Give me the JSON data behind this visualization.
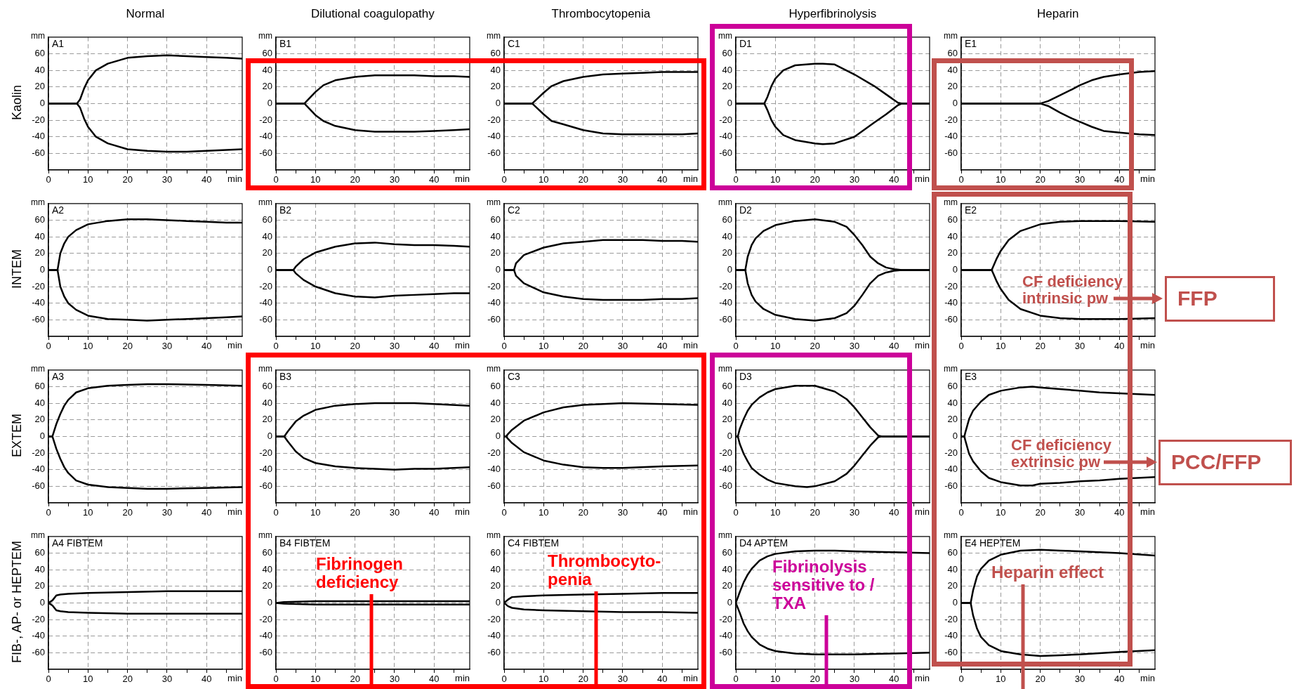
{
  "chart_data": [
    {
      "type": "line",
      "title": "A1",
      "subtitle": "Normal",
      "xlabel": "min",
      "ylabel": "mm",
      "annotations": [
        "Kaolin"
      ],
      "x": [
        0,
        7.2,
        8,
        9,
        10,
        12,
        15,
        20,
        25,
        30,
        35,
        40,
        45,
        49
      ],
      "xlim": [
        0,
        49
      ],
      "ylim": [
        -80,
        80
      ],
      "xticks": [
        0,
        {
          "value": 5,
          "label": null
        },
        10,
        {
          "value": 15,
          "label": null
        },
        20,
        {
          "value": 25,
          "label": null
        },
        30,
        {
          "value": 35,
          "label": null
        },
        40,
        {
          "value": 45,
          "label": null
        }
      ],
      "yticks": [
        -60,
        -40,
        -20,
        0,
        20,
        40,
        60
      ],
      "grid": true,
      "marker": "none",
      "series": [
        {
          "color": "#000000",
          "values": [
            0,
            0,
            5,
            18,
            28,
            40,
            48,
            55,
            57,
            58,
            57,
            56,
            55,
            54
          ]
        },
        {
          "color": "#000000",
          "values": [
            0,
            0,
            -5,
            -18,
            -28,
            -40,
            -48,
            -55,
            -57,
            -58,
            -58,
            -57,
            -56,
            -55
          ]
        }
      ]
    },
    {
      "type": "line",
      "title": "B1",
      "subtitle": "Dilutional coagulopathy",
      "xlabel": "min",
      "ylabel": "mm",
      "x": [
        0,
        7.2,
        8,
        10,
        12,
        15,
        20,
        25,
        30,
        35,
        40,
        45,
        49
      ],
      "xlim": [
        0,
        49
      ],
      "ylim": [
        -80,
        80
      ],
      "xticks": [
        0,
        {
          "value": 5,
          "label": null
        },
        10,
        {
          "value": 15,
          "label": null
        },
        20,
        {
          "value": 25,
          "label": null
        },
        30,
        {
          "value": 35,
          "label": null
        },
        40,
        {
          "value": 45,
          "label": null
        }
      ],
      "yticks": [
        -60,
        -40,
        -20,
        0,
        20,
        40,
        60
      ],
      "grid": true,
      "marker": "none",
      "series": [
        {
          "color": "#000000",
          "values": [
            0,
            0,
            4,
            14,
            22,
            28,
            32,
            34,
            34,
            34,
            33,
            33,
            32
          ]
        },
        {
          "color": "#000000",
          "values": [
            0,
            0,
            -4,
            -14,
            -21,
            -27,
            -32,
            -34,
            -34,
            -34,
            -33,
            -32,
            -31
          ]
        }
      ]
    },
    {
      "type": "line",
      "title": "C1",
      "subtitle": "Thrombocytopenia",
      "xlabel": "min",
      "ylabel": "mm",
      "x": [
        0,
        7.1,
        8,
        10,
        12,
        15,
        20,
        25,
        30,
        35,
        40,
        45,
        49
      ],
      "xlim": [
        0,
        49
      ],
      "ylim": [
        -80,
        80
      ],
      "xticks": [
        0,
        {
          "value": 5,
          "label": null
        },
        10,
        {
          "value": 15,
          "label": null
        },
        20,
        {
          "value": 25,
          "label": null
        },
        30,
        {
          "value": 35,
          "label": null
        },
        40,
        {
          "value": 45,
          "label": null
        }
      ],
      "yticks": [
        -60,
        -40,
        -20,
        0,
        20,
        40,
        60
      ],
      "grid": true,
      "marker": "none",
      "series": [
        {
          "color": "#000000",
          "values": [
            0,
            0,
            4,
            13,
            21,
            27,
            32,
            35,
            36,
            37,
            38,
            38,
            38
          ]
        },
        {
          "color": "#000000",
          "values": [
            0,
            0,
            -4,
            -13,
            -21,
            -25,
            -32,
            -36,
            -37,
            -37,
            -37,
            -37,
            -36
          ]
        }
      ]
    },
    {
      "type": "line",
      "title": "D1",
      "subtitle": "Hyperfibrinolysis",
      "xlabel": "min",
      "ylabel": "mm",
      "x": [
        0,
        7.2,
        8,
        9,
        10,
        12,
        15,
        20,
        22,
        25,
        30,
        35,
        38,
        41,
        42,
        49
      ],
      "xlim": [
        0,
        49
      ],
      "ylim": [
        -80,
        80
      ],
      "xticks": [
        0,
        {
          "value": 5,
          "label": null
        },
        10,
        {
          "value": 15,
          "label": null
        },
        20,
        {
          "value": 25,
          "label": null
        },
        30,
        {
          "value": 35,
          "label": null
        },
        40,
        {
          "value": 45,
          "label": null
        }
      ],
      "yticks": [
        -60,
        -40,
        -20,
        0,
        20,
        40,
        60
      ],
      "grid": true,
      "marker": "none",
      "series": [
        {
          "color": "#000000",
          "values": [
            0,
            0,
            8,
            21,
            30,
            40,
            46,
            48,
            48,
            47,
            35,
            21,
            11,
            1,
            0,
            0
          ]
        },
        {
          "color": "#000000",
          "values": [
            0,
            0,
            -8,
            -20,
            -28,
            -38,
            -44,
            -48,
            -49,
            -48,
            -40,
            -23,
            -13,
            -2,
            0,
            0
          ]
        }
      ]
    },
    {
      "type": "line",
      "title": "E1",
      "subtitle": "Heparin",
      "xlabel": "min",
      "ylabel": "mm",
      "x": [
        0,
        20,
        22,
        25,
        28,
        30,
        33,
        36,
        40,
        45,
        49
      ],
      "xlim": [
        0,
        49
      ],
      "ylim": [
        -80,
        80
      ],
      "xticks": [
        0,
        {
          "value": 5,
          "label": null
        },
        10,
        {
          "value": 15,
          "label": null
        },
        20,
        {
          "value": 25,
          "label": null
        },
        30,
        {
          "value": 35,
          "label": null
        },
        40,
        {
          "value": 45,
          "label": null
        }
      ],
      "yticks": [
        -60,
        -40,
        -20,
        0,
        20,
        40,
        60
      ],
      "grid": true,
      "marker": "none",
      "series": [
        {
          "color": "#000000",
          "values": [
            0,
            0,
            3,
            10,
            17,
            22,
            28,
            32,
            35,
            38,
            39
          ]
        },
        {
          "color": "#000000",
          "values": [
            0,
            0,
            -3,
            -11,
            -18,
            -22,
            -28,
            -33,
            -35,
            -37,
            -38
          ]
        }
      ]
    },
    {
      "type": "line",
      "title": "A2",
      "xlabel": "min",
      "ylabel": "mm",
      "annotations": [
        "INTEM"
      ],
      "x": [
        0,
        2.3,
        3,
        4,
        5,
        7,
        10,
        15,
        20,
        25,
        30,
        35,
        40,
        45,
        49
      ],
      "xlim": [
        0,
        49
      ],
      "ylim": [
        -80,
        80
      ],
      "xticks": [
        0,
        {
          "value": 5,
          "label": null
        },
        10,
        {
          "value": 15,
          "label": null
        },
        20,
        {
          "value": 25,
          "label": null
        },
        30,
        {
          "value": 35,
          "label": null
        },
        40,
        {
          "value": 45,
          "label": null
        }
      ],
      "yticks": [
        -60,
        -40,
        -20,
        0,
        20,
        40,
        60
      ],
      "grid": true,
      "marker": "none",
      "series": [
        {
          "color": "#000000",
          "values": [
            0,
            0,
            20,
            32,
            40,
            48,
            55,
            59,
            61,
            61,
            60,
            59,
            58,
            57,
            57
          ]
        },
        {
          "color": "#000000",
          "values": [
            0,
            0,
            -20,
            -32,
            -40,
            -48,
            -55,
            -59,
            -60,
            -61,
            -60,
            -59,
            -58,
            -57,
            -56
          ]
        }
      ]
    },
    {
      "type": "line",
      "title": "B2",
      "xlabel": "min",
      "ylabel": "mm",
      "x": [
        0,
        4.4,
        5,
        7,
        10,
        15,
        20,
        25,
        30,
        35,
        40,
        45,
        49
      ],
      "xlim": [
        0,
        49
      ],
      "ylim": [
        -80,
        80
      ],
      "xticks": [
        0,
        {
          "value": 5,
          "label": null
        },
        10,
        {
          "value": 15,
          "label": null
        },
        20,
        {
          "value": 25,
          "label": null
        },
        30,
        {
          "value": 35,
          "label": null
        },
        40,
        {
          "value": 45,
          "label": null
        }
      ],
      "yticks": [
        -60,
        -40,
        -20,
        0,
        20,
        40,
        60
      ],
      "grid": true,
      "marker": "none",
      "series": [
        {
          "color": "#000000",
          "values": [
            0,
            0,
            4,
            13,
            21,
            28,
            32,
            33,
            31,
            30,
            30,
            29,
            28
          ]
        },
        {
          "color": "#000000",
          "values": [
            0,
            0,
            -4,
            -12,
            -20,
            -28,
            -32,
            -33,
            -31,
            -30,
            -29,
            -28,
            -28
          ]
        }
      ]
    },
    {
      "type": "line",
      "title": "C2",
      "xlabel": "min",
      "ylabel": "mm",
      "x": [
        0,
        2.5,
        3,
        5,
        10,
        15,
        20,
        25,
        30,
        35,
        40,
        45,
        49
      ],
      "xlim": [
        0,
        49
      ],
      "ylim": [
        -80,
        80
      ],
      "xticks": [
        0,
        {
          "value": 5,
          "label": null
        },
        10,
        {
          "value": 15,
          "label": null
        },
        20,
        {
          "value": 25,
          "label": null
        },
        30,
        {
          "value": 35,
          "label": null
        },
        40,
        {
          "value": 45,
          "label": null
        }
      ],
      "yticks": [
        -60,
        -40,
        -20,
        0,
        20,
        40,
        60
      ],
      "grid": true,
      "marker": "none",
      "series": [
        {
          "color": "#000000",
          "values": [
            0,
            0,
            8,
            18,
            27,
            32,
            34,
            36,
            36,
            36,
            35,
            35,
            34
          ]
        },
        {
          "color": "#000000",
          "values": [
            0,
            0,
            -7,
            -16,
            -27,
            -32,
            -35,
            -36,
            -36,
            -36,
            -35,
            -35,
            -34
          ]
        }
      ]
    },
    {
      "type": "line",
      "title": "D2",
      "xlabel": "min",
      "ylabel": "mm",
      "x": [
        0,
        2.4,
        3,
        4,
        5,
        7,
        10,
        15,
        20,
        25,
        28,
        30,
        32,
        34,
        36,
        38,
        40,
        42,
        49
      ],
      "xlim": [
        0,
        49
      ],
      "ylim": [
        -80,
        80
      ],
      "xticks": [
        0,
        {
          "value": 5,
          "label": null
        },
        10,
        {
          "value": 15,
          "label": null
        },
        20,
        {
          "value": 25,
          "label": null
        },
        30,
        {
          "value": 35,
          "label": null
        },
        40,
        {
          "value": 45,
          "label": null
        }
      ],
      "yticks": [
        -60,
        -40,
        -20,
        0,
        20,
        40,
        60
      ],
      "grid": true,
      "marker": "none",
      "series": [
        {
          "color": "#000000",
          "values": [
            0,
            0,
            16,
            30,
            38,
            47,
            54,
            59,
            61,
            58,
            52,
            42,
            30,
            16,
            8,
            3,
            1,
            0,
            0
          ]
        },
        {
          "color": "#000000",
          "values": [
            0,
            0,
            -16,
            -30,
            -38,
            -47,
            -54,
            -59,
            -61,
            -58,
            -52,
            -43,
            -30,
            -16,
            -7,
            -3,
            -1,
            0,
            0
          ]
        }
      ]
    },
    {
      "type": "line",
      "title": "E2",
      "xlabel": "min",
      "ylabel": "mm",
      "annotations": [
        "CF deficiency intrinsic pw",
        "FFP"
      ],
      "x": [
        0,
        7.7,
        8,
        9,
        10,
        12,
        15,
        20,
        25,
        30,
        40,
        49
      ],
      "xlim": [
        0,
        49
      ],
      "ylim": [
        -80,
        80
      ],
      "xticks": [
        0,
        {
          "value": 5,
          "label": null
        },
        10,
        {
          "value": 15,
          "label": null
        },
        20,
        {
          "value": 25,
          "label": null
        },
        30,
        {
          "value": 35,
          "label": null
        },
        40,
        {
          "value": 45,
          "label": null
        }
      ],
      "yticks": [
        -60,
        -40,
        -20,
        0,
        20,
        40,
        60
      ],
      "grid": true,
      "marker": "none",
      "series": [
        {
          "color": "#000000",
          "values": [
            0,
            0,
            3,
            14,
            23,
            36,
            47,
            55,
            58,
            59,
            59,
            58
          ]
        },
        {
          "color": "#000000",
          "values": [
            0,
            0,
            -3,
            -14,
            -23,
            -36,
            -47,
            -55,
            -58,
            -59,
            -59,
            -58
          ]
        }
      ]
    },
    {
      "type": "line",
      "title": "A3",
      "xlabel": "min",
      "ylabel": "mm",
      "annotations": [
        "EXTEM"
      ],
      "x": [
        0,
        1,
        2,
        3,
        4,
        5,
        7,
        10,
        15,
        20,
        25,
        30,
        40,
        49
      ],
      "xlim": [
        0,
        49
      ],
      "ylim": [
        -80,
        80
      ],
      "xticks": [
        0,
        {
          "value": 5,
          "label": null
        },
        10,
        {
          "value": 15,
          "label": null
        },
        20,
        {
          "value": 25,
          "label": null
        },
        30,
        {
          "value": 35,
          "label": null
        },
        40,
        {
          "value": 45,
          "label": null
        }
      ],
      "yticks": [
        -60,
        -40,
        -20,
        0,
        20,
        40,
        60
      ],
      "grid": true,
      "marker": "none",
      "series": [
        {
          "color": "#000000",
          "values": [
            0,
            0,
            15,
            27,
            37,
            44,
            53,
            58,
            61,
            62,
            63,
            63,
            62,
            61
          ]
        },
        {
          "color": "#000000",
          "values": [
            0,
            0,
            -15,
            -27,
            -37,
            -44,
            -53,
            -58,
            -61,
            -62,
            -63,
            -63,
            -62,
            -61
          ]
        }
      ]
    },
    {
      "type": "line",
      "title": "B3",
      "xlabel": "min",
      "ylabel": "mm",
      "x": [
        0,
        2.1,
        3,
        5,
        7,
        10,
        15,
        20,
        25,
        30,
        35,
        40,
        49
      ],
      "xlim": [
        0,
        49
      ],
      "ylim": [
        -80,
        80
      ],
      "xticks": [
        0,
        {
          "value": 5,
          "label": null
        },
        10,
        {
          "value": 15,
          "label": null
        },
        20,
        {
          "value": 25,
          "label": null
        },
        30,
        {
          "value": 35,
          "label": null
        },
        40,
        {
          "value": 45,
          "label": null
        }
      ],
      "yticks": [
        -60,
        -40,
        -20,
        0,
        20,
        40,
        60
      ],
      "grid": true,
      "marker": "none",
      "series": [
        {
          "color": "#000000",
          "values": [
            0,
            0,
            6,
            18,
            25,
            32,
            37,
            39,
            40,
            40,
            40,
            39,
            37
          ]
        },
        {
          "color": "#000000",
          "values": [
            0,
            0,
            -6,
            -18,
            -26,
            -32,
            -36,
            -38,
            -39,
            -40,
            -39,
            -39,
            -37
          ]
        }
      ]
    },
    {
      "type": "line",
      "title": "C3",
      "xlabel": "min",
      "ylabel": "mm",
      "x": [
        0,
        0.5,
        1,
        2,
        5,
        10,
        15,
        20,
        25,
        30,
        40,
        49
      ],
      "xlim": [
        0,
        49
      ],
      "ylim": [
        -80,
        80
      ],
      "xticks": [
        0,
        {
          "value": 5,
          "label": null
        },
        10,
        {
          "value": 15,
          "label": null
        },
        20,
        {
          "value": 25,
          "label": null
        },
        30,
        {
          "value": 35,
          "label": null
        },
        40,
        {
          "value": 45,
          "label": null
        }
      ],
      "yticks": [
        -60,
        -40,
        -20,
        0,
        20,
        40,
        60
      ],
      "grid": true,
      "marker": "none",
      "series": [
        {
          "color": "#000000",
          "values": [
            0,
            0,
            3,
            8,
            19,
            29,
            35,
            38,
            39,
            40,
            39,
            38
          ]
        },
        {
          "color": "#000000",
          "values": [
            0,
            0,
            -3,
            -8,
            -19,
            -29,
            -34,
            -37,
            -38,
            -38,
            -36,
            -35
          ]
        }
      ]
    },
    {
      "type": "line",
      "title": "D3",
      "xlabel": "min",
      "ylabel": "mm",
      "x": [
        0,
        0.5,
        1,
        2,
        3,
        4,
        6,
        8,
        10,
        15,
        18,
        20,
        25,
        28,
        30,
        32,
        34,
        36,
        37,
        49
      ],
      "xlim": [
        0,
        49
      ],
      "ylim": [
        -80,
        80
      ],
      "xticks": [
        0,
        {
          "value": 5,
          "label": null
        },
        10,
        {
          "value": 15,
          "label": null
        },
        20,
        {
          "value": 25,
          "label": null
        },
        30,
        {
          "value": 35,
          "label": null
        },
        40,
        {
          "value": 45,
          "label": null
        }
      ],
      "yticks": [
        -60,
        -40,
        -20,
        0,
        20,
        40,
        60
      ],
      "grid": true,
      "marker": "none",
      "series": [
        {
          "color": "#000000",
          "values": [
            0,
            0,
            9,
            21,
            31,
            38,
            47,
            53,
            57,
            61,
            61,
            61,
            54,
            45,
            35,
            23,
            11,
            1,
            0,
            0
          ]
        },
        {
          "color": "#000000",
          "values": [
            0,
            0,
            -9,
            -21,
            -30,
            -38,
            -46,
            -52,
            -56,
            -60,
            -61,
            -60,
            -54,
            -45,
            -35,
            -23,
            -11,
            -1,
            0,
            0
          ]
        }
      ]
    },
    {
      "type": "line",
      "title": "E3",
      "xlabel": "min",
      "ylabel": "mm",
      "annotations": [
        "CF deficiency extrinsic pw",
        "PCC/FFP"
      ],
      "x": [
        0,
        0.8,
        1,
        2,
        3,
        5,
        7,
        10,
        15,
        18,
        20,
        25,
        30,
        35,
        40,
        49
      ],
      "xlim": [
        0,
        49
      ],
      "ylim": [
        -80,
        80
      ],
      "xticks": [
        0,
        {
          "value": 5,
          "label": null
        },
        10,
        {
          "value": 15,
          "label": null
        },
        20,
        {
          "value": 25,
          "label": null
        },
        30,
        {
          "value": 35,
          "label": null
        },
        40,
        {
          "value": 45,
          "label": null
        }
      ],
      "yticks": [
        -60,
        -40,
        -20,
        0,
        20,
        40,
        60
      ],
      "grid": true,
      "marker": "none",
      "series": [
        {
          "color": "#000000",
          "values": [
            0,
            0,
            4,
            21,
            31,
            42,
            50,
            55,
            59,
            60,
            59,
            57,
            55,
            53,
            52,
            50
          ]
        },
        {
          "color": "#000000",
          "values": [
            0,
            0,
            -4,
            -21,
            -30,
            -42,
            -50,
            -55,
            -59,
            -59,
            -57,
            -56,
            -54,
            -53,
            -51,
            -49
          ]
        }
      ]
    },
    {
      "type": "line",
      "title": "A4 FIBTEM",
      "xlabel": "min",
      "ylabel": "mm",
      "annotations": [
        "FIB-, AP- or HEPTEM"
      ],
      "x": [
        0,
        1,
        2,
        3,
        5,
        10,
        20,
        30,
        40,
        49
      ],
      "xlim": [
        0,
        49
      ],
      "ylim": [
        -80,
        80
      ],
      "xticks": [
        0,
        {
          "value": 5,
          "label": null
        },
        10,
        {
          "value": 15,
          "label": null
        },
        20,
        {
          "value": 25,
          "label": null
        },
        30,
        {
          "value": 35,
          "label": null
        },
        40,
        {
          "value": 45,
          "label": null
        }
      ],
      "yticks": [
        -60,
        -40,
        -20,
        0,
        20,
        40,
        60
      ],
      "grid": true,
      "marker": "none",
      "series": [
        {
          "color": "#000000",
          "values": [
            0,
            3,
            9,
            10,
            11,
            12,
            13,
            14,
            14,
            14
          ]
        },
        {
          "color": "#000000",
          "values": [
            0,
            -3,
            -9,
            -10,
            -11,
            -12,
            -13,
            -13,
            -13,
            -13
          ]
        }
      ]
    },
    {
      "type": "line",
      "title": "B4 FIBTEM",
      "xlabel": "min",
      "ylabel": "mm",
      "annotations": [
        "Fibrinogen deficiency"
      ],
      "x": [
        0,
        2,
        10,
        20,
        30,
        40,
        49
      ],
      "xlim": [
        0,
        49
      ],
      "ylim": [
        -80,
        80
      ],
      "xticks": [
        0,
        {
          "value": 5,
          "label": null
        },
        10,
        {
          "value": 15,
          "label": null
        },
        20,
        {
          "value": 25,
          "label": null
        },
        30,
        {
          "value": 35,
          "label": null
        },
        40,
        {
          "value": 45,
          "label": null
        }
      ],
      "yticks": [
        -60,
        -40,
        -20,
        0,
        20,
        40,
        60
      ],
      "grid": true,
      "marker": "none",
      "series": [
        {
          "color": "#000000",
          "values": [
            0,
            1,
            2,
            2,
            2,
            2,
            2
          ]
        },
        {
          "color": "#000000",
          "values": [
            0,
            -1,
            -2,
            -2,
            -2,
            -2,
            -2
          ]
        }
      ]
    },
    {
      "type": "line",
      "title": "C4 FIBTEM",
      "xlabel": "min",
      "ylabel": "mm",
      "annotations": [
        "Thrombocyto-penia"
      ],
      "x": [
        0,
        1,
        2,
        5,
        10,
        20,
        30,
        40,
        49
      ],
      "xlim": [
        0,
        49
      ],
      "ylim": [
        -80,
        80
      ],
      "xticks": [
        0,
        {
          "value": 5,
          "label": null
        },
        10,
        {
          "value": 15,
          "label": null
        },
        20,
        {
          "value": 25,
          "label": null
        },
        30,
        {
          "value": 35,
          "label": null
        },
        40,
        {
          "value": 45,
          "label": null
        }
      ],
      "yticks": [
        -60,
        -40,
        -20,
        0,
        20,
        40,
        60
      ],
      "grid": true,
      "marker": "none",
      "series": [
        {
          "color": "#000000",
          "values": [
            0,
            4,
            7,
            8,
            9,
            10,
            11,
            12,
            12
          ]
        },
        {
          "color": "#000000",
          "values": [
            0,
            -4,
            -6,
            -8,
            -9,
            -10,
            -11,
            -11,
            -12
          ]
        }
      ]
    },
    {
      "type": "line",
      "title": "D4 APTEM",
      "xlabel": "min",
      "ylabel": "mm",
      "annotations": [
        "Fibrinolysis sensitive to / TXA"
      ],
      "x": [
        0,
        1,
        2,
        3,
        4,
        6,
        8,
        10,
        15,
        20,
        25,
        30,
        40,
        49
      ],
      "xlim": [
        0,
        49
      ],
      "ylim": [
        -80,
        80
      ],
      "xticks": [
        0,
        {
          "value": 5,
          "label": null
        },
        10,
        {
          "value": 15,
          "label": null
        },
        20,
        {
          "value": 25,
          "label": null
        },
        30,
        {
          "value": 35,
          "label": null
        },
        40,
        {
          "value": 45,
          "label": null
        }
      ],
      "yticks": [
        -60,
        -40,
        -20,
        0,
        20,
        40,
        60
      ],
      "grid": true,
      "marker": "none",
      "series": [
        {
          "color": "#000000",
          "values": [
            0,
            13,
            25,
            34,
            41,
            51,
            56,
            59,
            62,
            63,
            63,
            62,
            61,
            60
          ]
        },
        {
          "color": "#000000",
          "values": [
            0,
            -12,
            -25,
            -34,
            -41,
            -50,
            -55,
            -58,
            -61,
            -62,
            -62,
            -62,
            -61,
            -60
          ]
        }
      ]
    },
    {
      "type": "line",
      "title": "E4 HEPTEM",
      "xlabel": "min",
      "ylabel": "mm",
      "annotations": [
        "Heparin effect"
      ],
      "x": [
        0,
        2.4,
        3,
        4,
        5,
        7,
        10,
        15,
        20,
        25,
        30,
        40,
        49
      ],
      "xlim": [
        0,
        49
      ],
      "ylim": [
        -80,
        80
      ],
      "xticks": [
        0,
        {
          "value": 5,
          "label": null
        },
        10,
        {
          "value": 15,
          "label": null
        },
        20,
        {
          "value": 25,
          "label": null
        },
        30,
        {
          "value": 35,
          "label": null
        },
        40,
        {
          "value": 45,
          "label": null
        }
      ],
      "yticks": [
        -60,
        -40,
        -20,
        0,
        20,
        40,
        60
      ],
      "grid": true,
      "marker": "none",
      "series": [
        {
          "color": "#000000",
          "values": [
            0,
            0,
            15,
            32,
            41,
            51,
            58,
            63,
            64,
            63,
            62,
            60,
            57
          ]
        },
        {
          "color": "#000000",
          "values": [
            0,
            0,
            -15,
            -31,
            -41,
            -51,
            -58,
            -62,
            -64,
            -63,
            -62,
            -59,
            -57
          ]
        }
      ]
    }
  ]
}
